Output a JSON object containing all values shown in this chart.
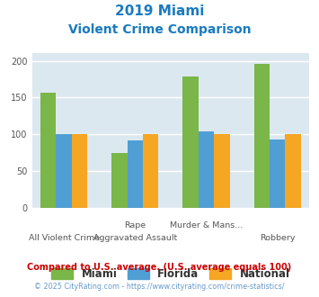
{
  "title_line1": "2019 Miami",
  "title_line2": "Violent Crime Comparison",
  "title_color": "#1a7abf",
  "cat_labels_top": [
    "",
    "Rape",
    "Murder & Mans...",
    ""
  ],
  "cat_labels_bot": [
    "All Violent Crime",
    "Aggravated Assault",
    "",
    "Robbery"
  ],
  "miami_values": [
    157,
    75,
    179,
    196
  ],
  "florida_values": [
    100,
    92,
    104,
    93
  ],
  "national_values": [
    100,
    100,
    100,
    100
  ],
  "miami_color": "#7ab648",
  "florida_color": "#4f9fd4",
  "national_color": "#f5a623",
  "ylim": [
    0,
    210
  ],
  "yticks": [
    0,
    50,
    100,
    150,
    200
  ],
  "bar_width": 0.22,
  "plot_bg": "#dce8ef",
  "legend_labels": [
    "Miami",
    "Florida",
    "National"
  ],
  "footnote1": "Compared to U.S. average. (U.S. average equals 100)",
  "footnote2": "© 2025 CityRating.com - https://www.cityrating.com/crime-statistics/",
  "footnote1_color": "#cc0000",
  "footnote2_color": "#6699cc",
  "grid_color": "#ffffff"
}
